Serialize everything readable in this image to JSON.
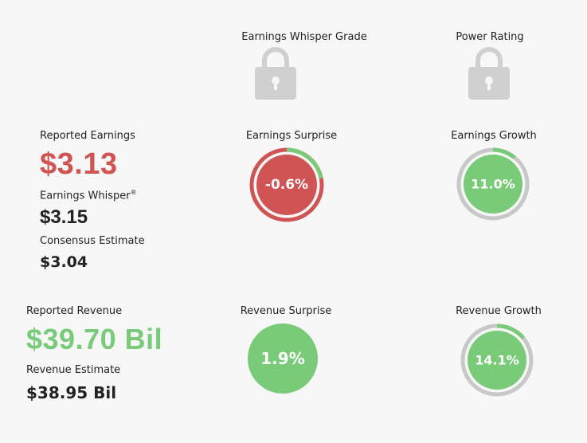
{
  "grades": {
    "whisper_grade_label": "Earnings Whisper Grade",
    "power_rating_label": "Power Rating",
    "icon": "padlock-icon"
  },
  "earnings": {
    "reported_label": "Reported Earnings",
    "reported_value": "$3.13",
    "whisper_label": "Earnings Whisper",
    "whisper_mark": "®",
    "whisper_value": "$3.15",
    "consensus_label": "Consensus Estimate",
    "consensus_value": "$3.04",
    "surprise_label": "Earnings Surprise",
    "surprise_value": "-0.6%",
    "growth_label": "Earnings Growth",
    "growth_value": "11.0%"
  },
  "revenue": {
    "reported_label": "Reported Revenue",
    "reported_value": "$39.70 Bil",
    "estimate_label": "Revenue Estimate",
    "estimate_value": "$38.95 Bil",
    "surprise_label": "Revenue Surprise",
    "surprise_value": "1.9%",
    "growth_label": "Revenue Growth",
    "growth_value": "14.1%"
  },
  "colors": {
    "negative": "#d05454",
    "positive": "#79cb79",
    "track": "#c8c8c8",
    "lock": "#d0d0d0"
  }
}
